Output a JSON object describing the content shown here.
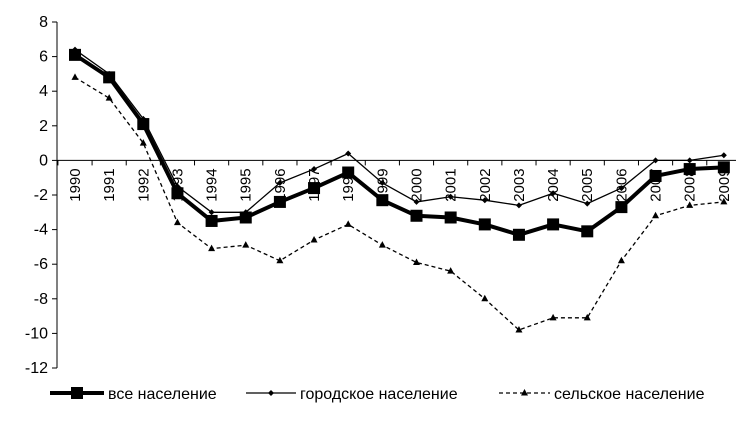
{
  "chart_data": {
    "type": "line",
    "title": "",
    "xlabel": "",
    "ylabel": "",
    "ylim": [
      -12,
      8
    ],
    "yticks": [
      8,
      6,
      4,
      2,
      0,
      -2,
      -4,
      -6,
      -8,
      -10,
      -12
    ],
    "categories": [
      "1990",
      "1991",
      "1992",
      "1993",
      "1994",
      "1995",
      "1996",
      "1997",
      "1998",
      "1999",
      "2000",
      "2001",
      "2002",
      "2003",
      "2004",
      "2005",
      "2006",
      "2007",
      "2008",
      "2009"
    ],
    "grid": false,
    "legend_position": "bottom",
    "series": [
      {
        "name": "все население",
        "values": [
          6.1,
          4.8,
          2.1,
          -1.9,
          -3.5,
          -3.3,
          -2.4,
          -1.6,
          -0.7,
          -2.3,
          -3.2,
          -3.3,
          -3.7,
          -4.3,
          -3.7,
          -4.1,
          -2.7,
          -0.9,
          -0.5,
          -0.4
        ],
        "color": "#000000",
        "style": "thick-square"
      },
      {
        "name": "городское население",
        "values": [
          6.4,
          5.0,
          2.4,
          -1.5,
          -3.0,
          -3.0,
          -1.3,
          -0.5,
          0.4,
          -1.3,
          -2.4,
          -2.1,
          -2.3,
          -2.6,
          -1.9,
          -2.5,
          -1.6,
          0.0,
          0.0,
          0.3
        ],
        "color": "#000000",
        "style": "thin-diamond"
      },
      {
        "name": "сельское население",
        "values": [
          4.8,
          3.6,
          1.0,
          -3.6,
          -5.1,
          -4.9,
          -5.8,
          -4.6,
          -3.7,
          -4.9,
          -5.9,
          -6.4,
          -8.0,
          -9.8,
          -9.1,
          -9.1,
          -5.8,
          -3.2,
          -2.6,
          -2.4
        ],
        "color": "#000000",
        "style": "dashed-triangle"
      }
    ]
  }
}
